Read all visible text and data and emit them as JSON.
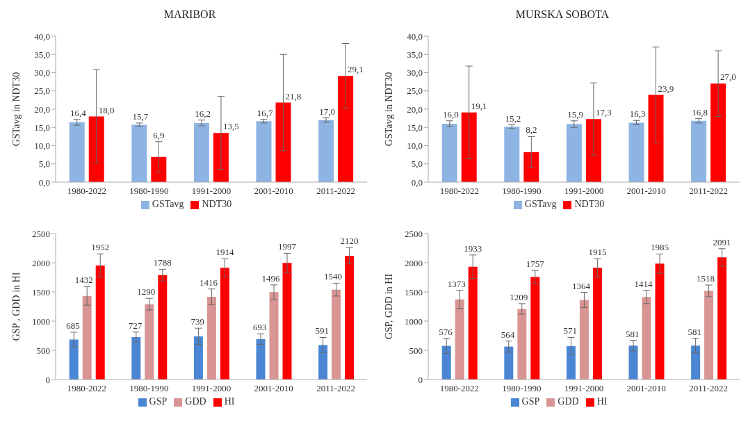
{
  "chart_data": [
    {
      "type": "bar",
      "title": "MARIBOR",
      "ylabel": "GSTavg in  NDT30",
      "categories": [
        "1980-2022",
        "1980-1990",
        "1991-2000",
        "2001-2010",
        "2011-2022"
      ],
      "series": [
        {
          "name": "GSTavg",
          "color": "#8db4e2",
          "values": [
            16.4,
            15.7,
            16.2,
            16.7,
            17.0
          ],
          "errors": [
            0.8,
            0.5,
            0.8,
            0.5,
            0.6
          ],
          "value_labels": [
            "16,4",
            "15,7",
            "16,2",
            "16,7",
            "17,0"
          ]
        },
        {
          "name": "NDT30",
          "color": "#ff0000",
          "values": [
            18.0,
            6.9,
            13.5,
            21.8,
            29.1
          ],
          "errors": [
            12.8,
            4.2,
            10,
            13.2,
            8.9
          ],
          "value_labels": [
            "18,0",
            "6,9",
            "13,5",
            "21,8",
            "29,1"
          ]
        }
      ],
      "ylim": [
        0,
        40
      ],
      "yticks": [
        {
          "value": 0,
          "label": "0,0"
        },
        {
          "value": 5,
          "label": "5,0"
        },
        {
          "value": 10,
          "label": "10,0"
        },
        {
          "value": 15,
          "label": "15,0"
        },
        {
          "value": 20,
          "label": "20,0"
        },
        {
          "value": 25,
          "label": "25,0"
        },
        {
          "value": 30,
          "label": "30,0"
        },
        {
          "value": 35,
          "label": "35,0"
        },
        {
          "value": 40,
          "label": "40,0"
        }
      ],
      "grid": false,
      "legend": "bottom"
    },
    {
      "type": "bar",
      "title": "MURSKA SOBOTA",
      "ylabel": "GSTavg  in  NDT30",
      "categories": [
        "1980-2022",
        "1980-1990",
        "1991-2000",
        "2001-2010",
        "2011-2022"
      ],
      "series": [
        {
          "name": "GSTavg",
          "color": "#8db4e2",
          "values": [
            16.0,
            15.2,
            15.9,
            16.3,
            16.8
          ],
          "errors": [
            0.8,
            0.5,
            0.9,
            0.6,
            0.6
          ],
          "value_labels": [
            "16,0",
            "15,2",
            "15,9",
            "16,3",
            "16,8"
          ]
        },
        {
          "name": "NDT30",
          "color": "#ff0000",
          "values": [
            19.1,
            8.2,
            17.3,
            23.9,
            27.0
          ],
          "errors": [
            12.7,
            4.3,
            9.9,
            13.1,
            9
          ],
          "value_labels": [
            "19,1",
            "8,2",
            "17,3",
            "23,9",
            "27,0"
          ]
        }
      ],
      "ylim": [
        0,
        40
      ],
      "yticks": [
        {
          "value": 0,
          "label": "0,0"
        },
        {
          "value": 5,
          "label": "5,0"
        },
        {
          "value": 10,
          "label": "10,0"
        },
        {
          "value": 15,
          "label": "15,0"
        },
        {
          "value": 20,
          "label": "20,0"
        },
        {
          "value": 25,
          "label": "25,0"
        },
        {
          "value": 30,
          "label": "30,0"
        },
        {
          "value": 35,
          "label": "35,0"
        },
        {
          "value": 40,
          "label": "40,0"
        }
      ],
      "grid": false,
      "legend": "bottom"
    },
    {
      "type": "bar",
      "ylabel": "GSP , GDD in HI",
      "categories": [
        "1980-2022",
        "1980-1990",
        "1991-2000",
        "2001-2010",
        "2011-2022"
      ],
      "series": [
        {
          "name": "GSP",
          "color": "#4a86d4",
          "values": [
            685,
            727,
            739,
            693,
            591
          ],
          "errors": [
            125,
            85,
            140,
            90,
            130
          ]
        },
        {
          "name": "GDD",
          "color": "#d99594",
          "values": [
            1432,
            1290,
            1416,
            1496,
            1540
          ],
          "errors": [
            160,
            100,
            135,
            125,
            110
          ]
        },
        {
          "name": "HI",
          "color": "#ff0000",
          "values": [
            1952,
            1788,
            1914,
            1997,
            2120
          ],
          "errors": [
            200,
            100,
            155,
            165,
            140
          ]
        }
      ],
      "ylim": [
        0,
        2500
      ],
      "yticks": [
        0,
        500,
        1000,
        1500,
        2000,
        2500
      ],
      "data_labels": true,
      "grid": false,
      "legend": "bottom"
    },
    {
      "type": "bar",
      "ylabel": "GSP, GDD in HI",
      "categories": [
        "1980-2022",
        "1980-1990",
        "1991-2000",
        "2001-2010",
        "2011-2022"
      ],
      "series": [
        {
          "name": "GSP",
          "color": "#4a86d4",
          "values": [
            576,
            564,
            571,
            581,
            581
          ],
          "errors": [
            130,
            95,
            150,
            90,
            125
          ]
        },
        {
          "name": "GDD",
          "color": "#d99594",
          "values": [
            1373,
            1209,
            1364,
            1414,
            1518
          ],
          "errors": [
            155,
            90,
            130,
            115,
            100
          ]
        },
        {
          "name": "HI",
          "color": "#ff0000",
          "values": [
            1933,
            1757,
            1915,
            1985,
            2091
          ],
          "errors": [
            200,
            110,
            155,
            165,
            150
          ]
        }
      ],
      "ylim": [
        0,
        2500
      ],
      "yticks": [
        0,
        500,
        1000,
        1500,
        2000,
        2500
      ],
      "data_labels": true,
      "grid": false,
      "legend": "bottom"
    }
  ]
}
